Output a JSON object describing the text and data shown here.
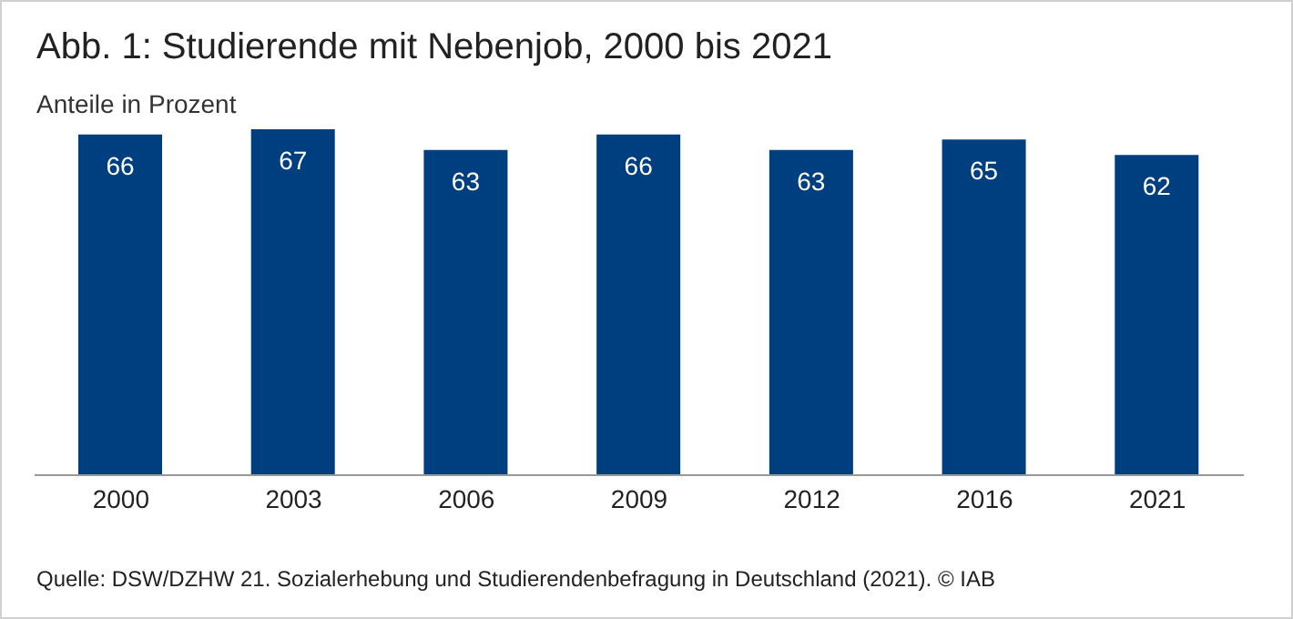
{
  "chart_data": {
    "type": "bar",
    "title": "Abb. 1: Studierende mit Nebenjob, 2000 bis 2021",
    "subtitle": "Anteile in Prozent",
    "categories": [
      "2000",
      "2003",
      "2006",
      "2009",
      "2012",
      "2016",
      "2021"
    ],
    "values": [
      66,
      67,
      63,
      66,
      63,
      65,
      62
    ],
    "color": "#003f7f",
    "data_labels": true,
    "tick_labels": "x",
    "annotations": [
      "Quelle: DSW/DZHW 21. Sozialerhebung und Studierendenbefragung in Deutschland (2021). © IAB"
    ]
  }
}
